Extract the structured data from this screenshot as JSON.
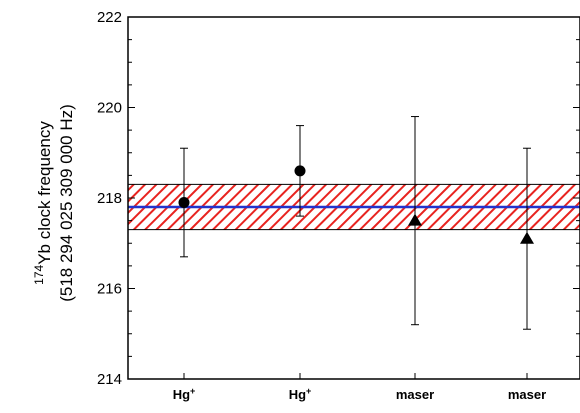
{
  "chart_data": {
    "type": "scatter",
    "categories": [
      "Hg+",
      "Hg+",
      "maser",
      "maser"
    ],
    "values": [
      217.9,
      218.6,
      217.5,
      217.1
    ],
    "error_low": [
      216.7,
      217.6,
      215.2,
      215.1
    ],
    "error_high": [
      219.1,
      219.6,
      219.8,
      219.1
    ],
    "markers": [
      "circle",
      "circle",
      "triangle",
      "triangle"
    ],
    "mean_line": 217.8,
    "band": [
      217.3,
      218.3
    ],
    "ylim": [
      214,
      222
    ],
    "yticks": [
      "214",
      "216",
      "218",
      "220",
      "222"
    ],
    "ylabel": {
      "line1_superscript": "174",
      "line1_text": "Yb clock frequency",
      "line2": "(518 294 025 309 000 Hz)"
    },
    "xlabel": "",
    "title": "",
    "colors": {
      "band_hatch": "#e8231f",
      "mean_line": "#2233cc",
      "markers": "#000000",
      "axes": "#000000"
    }
  }
}
